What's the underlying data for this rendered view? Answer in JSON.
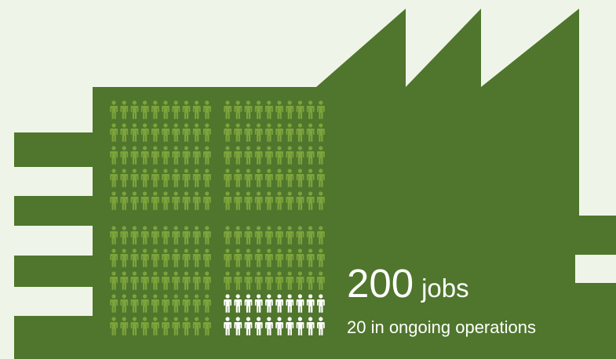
{
  "headline": {
    "count": "200",
    "unit": "jobs",
    "caption": "20 in ongoing operations"
  },
  "figures": {
    "total": 200,
    "highlighted": 20
  },
  "icons": {
    "factory": "factory-icon",
    "person": "person-icon"
  },
  "colors": {
    "background": "#eff4e9",
    "factory": "#4f762c",
    "person": "#7da33c",
    "person_highlight": "#ffffff"
  }
}
